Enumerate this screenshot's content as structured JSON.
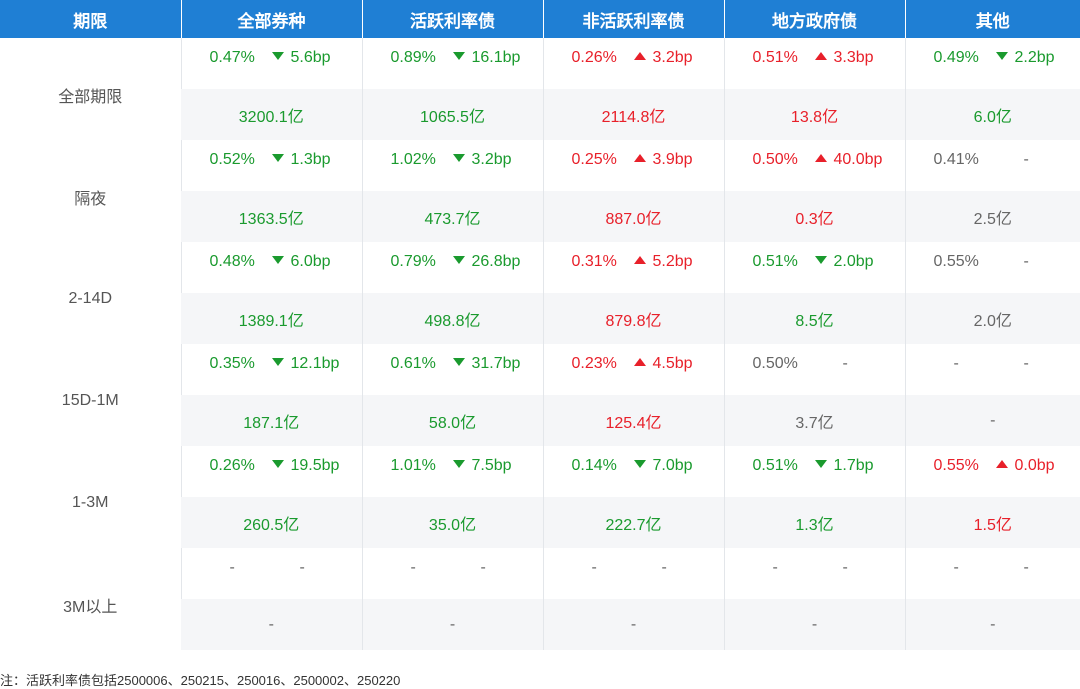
{
  "chart_data": {
    "type": "table",
    "columns": [
      "期限",
      "全部券种",
      "活跃利率债",
      "非活跃利率债",
      "地方政府债",
      "其他"
    ],
    "rows": [
      {
        "term": "全部期限",
        "rates": [
          {
            "value": "0.47%",
            "dir": "down",
            "change": "5.6bp"
          },
          {
            "value": "0.89%",
            "dir": "down",
            "change": "16.1bp"
          },
          {
            "value": "0.26%",
            "dir": "up",
            "change": "3.2bp"
          },
          {
            "value": "0.51%",
            "dir": "up",
            "change": "3.3bp"
          },
          {
            "value": "0.49%",
            "dir": "down",
            "change": "2.2bp"
          }
        ],
        "volumes": [
          {
            "value": "3200.1亿",
            "color": "g"
          },
          {
            "value": "1065.5亿",
            "color": "g"
          },
          {
            "value": "2114.8亿",
            "color": "r"
          },
          {
            "value": "13.8亿",
            "color": "r"
          },
          {
            "value": "6.0亿",
            "color": "g"
          }
        ]
      },
      {
        "term": "隔夜",
        "rates": [
          {
            "value": "0.52%",
            "dir": "down",
            "change": "1.3bp"
          },
          {
            "value": "1.02%",
            "dir": "down",
            "change": "3.2bp"
          },
          {
            "value": "0.25%",
            "dir": "up",
            "change": "3.9bp"
          },
          {
            "value": "0.50%",
            "dir": "up",
            "change": "40.0bp"
          },
          {
            "value": "0.41%",
            "dir": "none",
            "change": "-"
          }
        ],
        "volumes": [
          {
            "value": "1363.5亿",
            "color": "g"
          },
          {
            "value": "473.7亿",
            "color": "g"
          },
          {
            "value": "887.0亿",
            "color": "r"
          },
          {
            "value": "0.3亿",
            "color": "r"
          },
          {
            "value": "2.5亿",
            "color": "n"
          }
        ]
      },
      {
        "term": "2-14D",
        "rates": [
          {
            "value": "0.48%",
            "dir": "down",
            "change": "6.0bp"
          },
          {
            "value": "0.79%",
            "dir": "down",
            "change": "26.8bp"
          },
          {
            "value": "0.31%",
            "dir": "up",
            "change": "5.2bp"
          },
          {
            "value": "0.51%",
            "dir": "down",
            "change": "2.0bp"
          },
          {
            "value": "0.55%",
            "dir": "none",
            "change": "-"
          }
        ],
        "volumes": [
          {
            "value": "1389.1亿",
            "color": "g"
          },
          {
            "value": "498.8亿",
            "color": "g"
          },
          {
            "value": "879.8亿",
            "color": "r"
          },
          {
            "value": "8.5亿",
            "color": "g"
          },
          {
            "value": "2.0亿",
            "color": "n"
          }
        ]
      },
      {
        "term": "15D-1M",
        "rates": [
          {
            "value": "0.35%",
            "dir": "down",
            "change": "12.1bp"
          },
          {
            "value": "0.61%",
            "dir": "down",
            "change": "31.7bp"
          },
          {
            "value": "0.23%",
            "dir": "up",
            "change": "4.5bp"
          },
          {
            "value": "0.50%",
            "dir": "none",
            "change": "-"
          },
          {
            "value": "-",
            "dir": "none",
            "change": "-"
          }
        ],
        "volumes": [
          {
            "value": "187.1亿",
            "color": "g"
          },
          {
            "value": "58.0亿",
            "color": "g"
          },
          {
            "value": "125.4亿",
            "color": "r"
          },
          {
            "value": "3.7亿",
            "color": "n"
          },
          {
            "value": "-",
            "color": "n"
          }
        ]
      },
      {
        "term": "1-3M",
        "rates": [
          {
            "value": "0.26%",
            "dir": "down",
            "change": "19.5bp"
          },
          {
            "value": "1.01%",
            "dir": "down",
            "change": "7.5bp"
          },
          {
            "value": "0.14%",
            "dir": "down",
            "change": "7.0bp"
          },
          {
            "value": "0.51%",
            "dir": "down",
            "change": "1.7bp"
          },
          {
            "value": "0.55%",
            "dir": "up",
            "change": "0.0bp"
          }
        ],
        "volumes": [
          {
            "value": "260.5亿",
            "color": "g"
          },
          {
            "value": "35.0亿",
            "color": "g"
          },
          {
            "value": "222.7亿",
            "color": "g"
          },
          {
            "value": "1.3亿",
            "color": "g"
          },
          {
            "value": "1.5亿",
            "color": "r"
          }
        ]
      },
      {
        "term": "3M以上",
        "rates": [
          {
            "value": "-",
            "dir": "none",
            "change": "-"
          },
          {
            "value": "-",
            "dir": "none",
            "change": "-"
          },
          {
            "value": "-",
            "dir": "none",
            "change": "-"
          },
          {
            "value": "-",
            "dir": "none",
            "change": "-"
          },
          {
            "value": "-",
            "dir": "none",
            "change": "-"
          }
        ],
        "volumes": [
          {
            "value": "-",
            "color": "n"
          },
          {
            "value": "-",
            "color": "n"
          },
          {
            "value": "-",
            "color": "n"
          },
          {
            "value": "-",
            "color": "n"
          },
          {
            "value": "-",
            "color": "n"
          }
        ]
      }
    ],
    "note": "注：活跃利率债包括2500006、250215、250016、2500002、250220",
    "colors": {
      "header_bg": "#1f7fd4",
      "up": "#e8202a",
      "down": "#1a9a2e",
      "neutral": "#666666",
      "stripe": "#f5f6f8"
    }
  }
}
